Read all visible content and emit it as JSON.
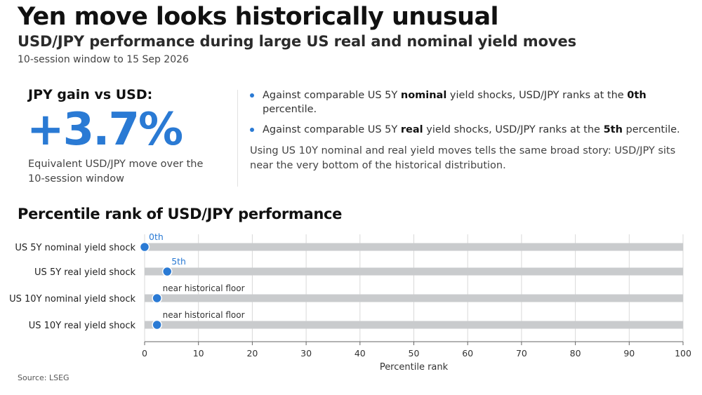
{
  "header": {
    "title": "Yen move looks historically unusual",
    "subtitle": "USD/JPY performance during large US real and nominal yield moves",
    "window_note": "10-session window to 15 Sep 2026"
  },
  "kpi": {
    "heading": "JPY gain vs USD:",
    "value": "+3.7%",
    "caption": "Equivalent USD/JPY move over the 10-session window"
  },
  "bullets": [
    {
      "pre": "Against comparable US 5Y ",
      "bold": "nominal",
      "mid": " yield shocks, USD/JPY ranks at the ",
      "rank": "0th",
      "post": " percentile."
    },
    {
      "pre": "Against comparable US 5Y ",
      "bold": "real",
      "mid": " yield shocks, USD/JPY ranks at the ",
      "rank": "5th",
      "post": " percentile."
    }
  ],
  "summary": "Using US 10Y nominal and real yield moves tells the same broad story: USD/JPY sits near the very bottom of the historical distribution.",
  "chart_title": "Percentile rank of USD/JPY performance",
  "source": "Source: LSEG",
  "colors": {
    "accent": "#2a7ad4",
    "bar": "#c9cbcd",
    "axis": "#666666",
    "grid": "#d9d9d9"
  },
  "chart_data": {
    "type": "bar",
    "orientation": "horizontal",
    "title": "",
    "xlabel": "Percentile rank",
    "ylabel": "",
    "xlim": [
      0,
      100
    ],
    "xticks": [
      0,
      10,
      20,
      30,
      40,
      50,
      60,
      70,
      80,
      90,
      100
    ],
    "grid": "vertical",
    "categories": [
      "US 5Y nominal yield shock",
      "US 5Y real yield shock",
      "US 10Y nominal yield shock",
      "US 10Y real yield shock"
    ],
    "range_bars": [
      100,
      100,
      100,
      100
    ],
    "points": [
      0,
      4.2,
      2.3,
      2.3
    ],
    "point_labels": [
      "0th",
      "5th",
      "near historical floor",
      "near historical floor"
    ],
    "point_label_emphasis": [
      true,
      true,
      false,
      false
    ]
  }
}
